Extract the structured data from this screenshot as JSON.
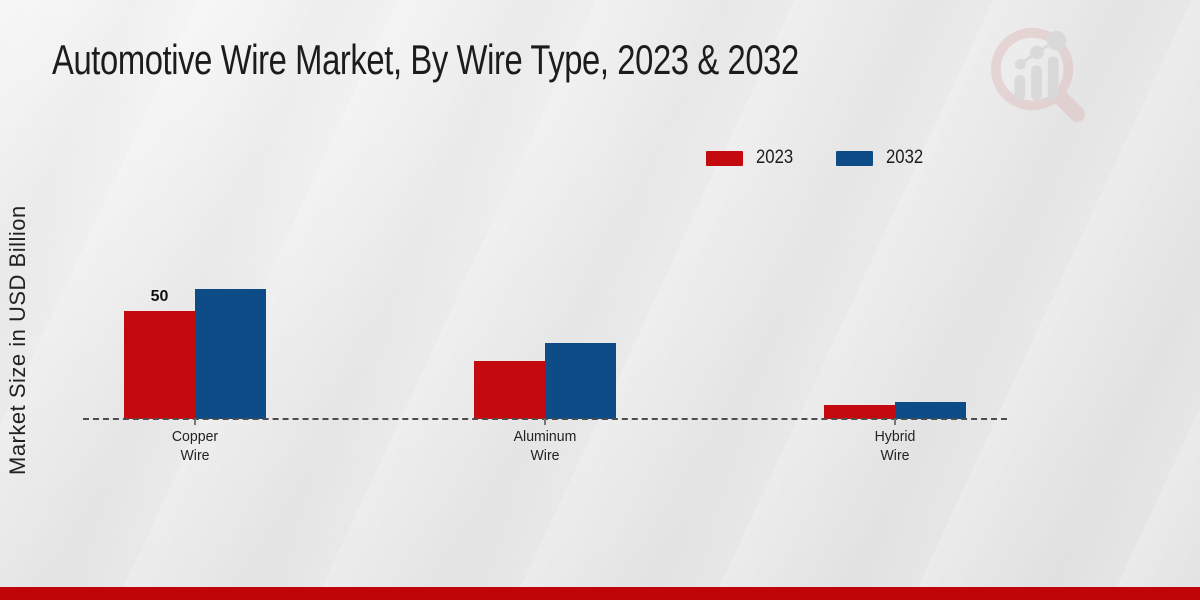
{
  "page": {
    "title": "Automotive Wire Market, By Wire Type, 2023 & 2032",
    "y_axis_label": "Market Size in USD Billion",
    "watermark_name": "market-research-future-logo"
  },
  "legend": [
    {
      "label": "2023",
      "color": "#c40a0f"
    },
    {
      "label": "2032",
      "color": "#0e4c87"
    }
  ],
  "chart_data": {
    "type": "bar",
    "title": "Automotive Wire Market, By Wire Type, 2023 & 2032",
    "xlabel": "",
    "ylabel": "Market Size in USD Billion",
    "categories": [
      "Copper Wire",
      "Aluminum Wire",
      "Hybrid Wire"
    ],
    "series": [
      {
        "name": "2023",
        "color": "#c40a0f",
        "values": [
          50,
          27,
          6.5
        ]
      },
      {
        "name": "2032",
        "color": "#0e4c87",
        "values": [
          60,
          35,
          8
        ]
      }
    ],
    "data_labels": [
      {
        "category_index": 0,
        "series_index": 0,
        "text": "50"
      }
    ],
    "ylim": [
      0,
      65
    ],
    "grid": false,
    "axis_style": "dashed-baseline-only",
    "legend_position": "top-right"
  },
  "colors": {
    "background": "#e9e9e9",
    "footer_bar": "#c00508",
    "baseline": "#4d4d4d",
    "watermark_ring": "#dba8a8",
    "watermark_bars": "#bdbdbd"
  }
}
